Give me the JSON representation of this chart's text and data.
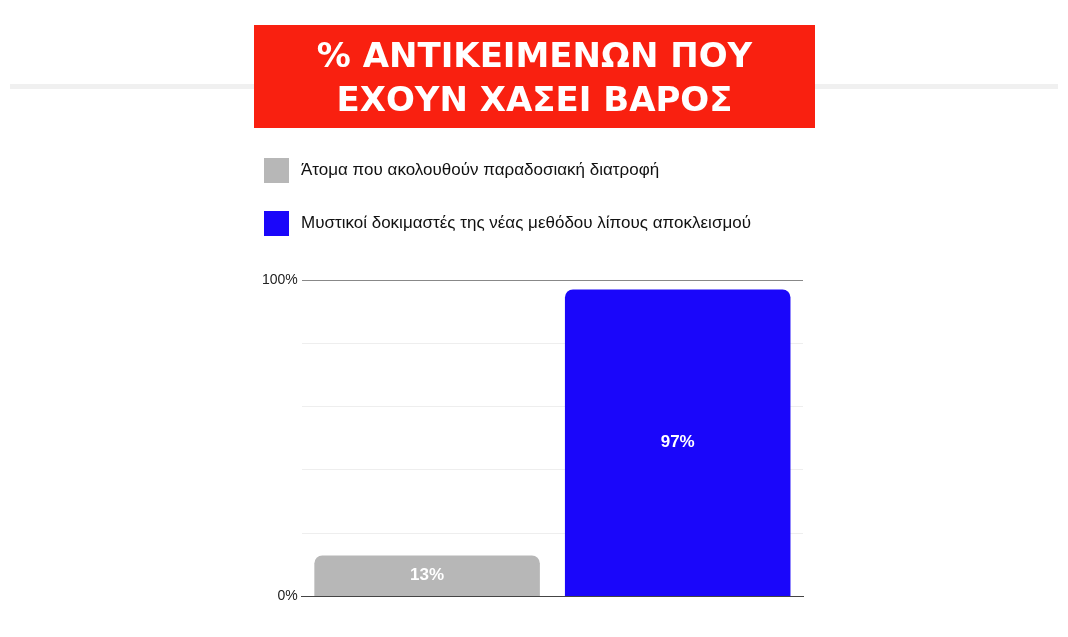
{
  "chart_data": {
    "type": "bar",
    "title": "% ΑΝΤΙΚΕΙΜΕΝΩΝ ΠΟΥ ΕΧΟΥΝ ΧΑΣΕΙ ΒΑΡΟΣ",
    "categories": [
      null,
      null
    ],
    "series": [
      {
        "name": "Άτομα που ακολουθούν παραδοσιακή διατροφή",
        "color": "#b7b7b7",
        "values": [
          13,
          null
        ]
      },
      {
        "name": "Μυστικοί δοκιμαστές της νέας μεθόδου λίπους αποκλεισμού",
        "color": "#1a06fa",
        "values": [
          null,
          97
        ]
      }
    ],
    "ylim": [
      0,
      100
    ],
    "yticks": [
      {
        "value": 0,
        "label": "0%"
      },
      {
        "value": 20,
        "label": null
      },
      {
        "value": 40,
        "label": null
      },
      {
        "value": 60,
        "label": null
      },
      {
        "value": 80,
        "label": null
      },
      {
        "value": 100,
        "label": "100%"
      }
    ],
    "value_labels": [
      "13%",
      "97%"
    ],
    "grid": "y",
    "legend": "top left"
  }
}
